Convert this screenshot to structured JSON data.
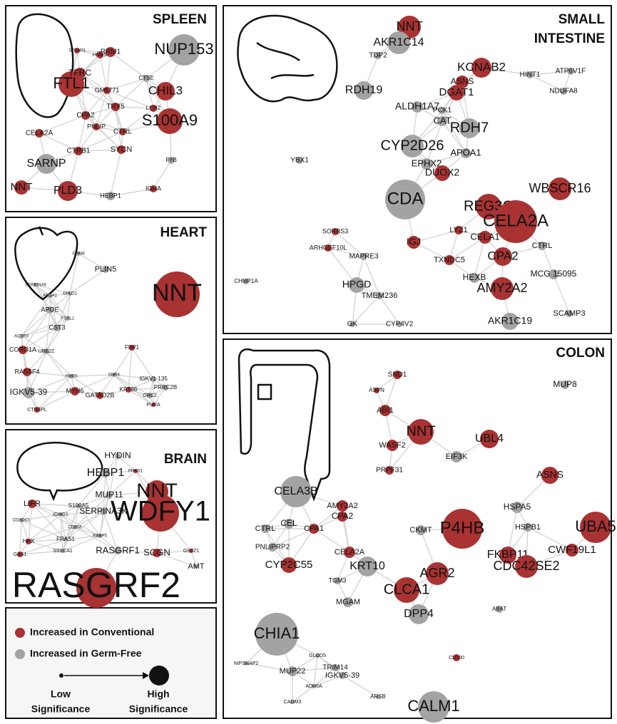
{
  "panels": [
    {
      "title": [
        "SPLEEN"
      ],
      "nodes": [
        {
          "label": "NUP153",
          "color": "#a3a3a3"
        },
        {
          "label": "FTL1",
          "color": "#a93232"
        },
        {
          "label": "CHIL3",
          "color": "#a93232"
        },
        {
          "label": "S100A9",
          "color": "#a93232"
        },
        {
          "label": "SARNP",
          "color": "#a3a3a3"
        },
        {
          "label": "NNT",
          "color": "#a93232"
        },
        {
          "label": "PLD3",
          "color": "#a93232"
        },
        {
          "label": "TFRC",
          "color": "#a93232"
        },
        {
          "label": "RRM1",
          "color": "#a93232"
        },
        {
          "label": "CTSE",
          "color": "#a3a3a3"
        },
        {
          "label": "HMBS",
          "color": "#a93232"
        },
        {
          "label": "STEAP3",
          "color": "#a93232"
        },
        {
          "label": "CPA2",
          "color": "#a93232"
        },
        {
          "label": "PNLIP",
          "color": "#a93232"
        },
        {
          "label": "CTRL",
          "color": "#a93232"
        },
        {
          "label": "CELA2A",
          "color": "#a93232"
        },
        {
          "label": "CTRB1",
          "color": "#a93232"
        },
        {
          "label": "SYCN",
          "color": "#a93232"
        },
        {
          "label": "TRY5",
          "color": "#a93232"
        },
        {
          "label": "LCN2",
          "color": "#a93232"
        },
        {
          "label": "HEBP1",
          "color": "#a3a3a3"
        },
        {
          "label": "IGHA",
          "color": "#a93232"
        },
        {
          "label": "FYB",
          "color": "#a3a3a3"
        },
        {
          "label": "GM5771",
          "color": "#a93232"
        }
      ]
    },
    {
      "title": [
        "HEART"
      ],
      "nodes": [
        {
          "label": "NNT",
          "color": "#a93232"
        },
        {
          "label": "PLIN5",
          "color": "#a3a3a3"
        },
        {
          "label": "GPAM",
          "color": "#a3a3a3"
        },
        {
          "label": "SERPINA6",
          "color": "#a3a3a3"
        },
        {
          "label": "APOA1",
          "color": "#a3a3a3"
        },
        {
          "label": "GPLD1",
          "color": "#a3a3a3"
        },
        {
          "label": "APOE",
          "color": "#a3a3a3"
        },
        {
          "label": "FSTL1",
          "color": "#a3a3a3"
        },
        {
          "label": "CST3",
          "color": "#a3a3a3"
        },
        {
          "label": "FBP1",
          "color": "#a93232"
        },
        {
          "label": "ACTR3",
          "color": "#a3a3a3"
        },
        {
          "label": "CORO1A",
          "color": "#a93232"
        },
        {
          "label": "UBE2Z",
          "color": "#a3a3a3"
        },
        {
          "label": "RASSF4",
          "color": "#a93232"
        },
        {
          "label": "IGKV5-39",
          "color": "#a3a3a3"
        },
        {
          "label": "MYH6",
          "color": "#a93232"
        },
        {
          "label": "GATAD2B",
          "color": "#a93232"
        },
        {
          "label": "KRT86",
          "color": "#a93232"
        },
        {
          "label": "IGKV1-135",
          "color": "#a3a3a3"
        },
        {
          "label": "PRRC2B",
          "color": "#a3a3a3"
        },
        {
          "label": "ORC2",
          "color": "#a3a3a3"
        },
        {
          "label": "CTDSPL",
          "color": "#a93232"
        },
        {
          "label": "PURA",
          "color": "#a93232"
        },
        {
          "label": "HMBS",
          "color": "#a3a3a3"
        },
        {
          "label": "SNRK",
          "color": "#a3a3a3"
        }
      ]
    },
    {
      "title": [
        "BRAIN"
      ],
      "nodes": [
        {
          "label": "WDFY1",
          "color": "#a93232"
        },
        {
          "label": "HYDIN",
          "color": "#a3a3a3"
        },
        {
          "label": "HEBP1",
          "color": "#a3a3a3"
        },
        {
          "label": "NNT",
          "color": "#a93232"
        },
        {
          "label": "MUP11",
          "color": "#a3a3a3"
        },
        {
          "label": "SERPINA3K",
          "color": "#a3a3a3"
        },
        {
          "label": "LIFR",
          "color": "#a93232"
        },
        {
          "label": "S100A5",
          "color": "#a3a3a3"
        },
        {
          "label": "IGHG1",
          "color": "#a3a3a3"
        },
        {
          "label": "CDADC1",
          "color": "#a3a3a3"
        },
        {
          "label": "CD59A",
          "color": "#a3a3a3"
        },
        {
          "label": "HPX",
          "color": "#a93232"
        },
        {
          "label": "FRAS1",
          "color": "#a3a3a3"
        },
        {
          "label": "RBBP5",
          "color": "#a3a3a3"
        },
        {
          "label": "GAS1",
          "color": "#a93232"
        },
        {
          "label": "SSSCA1",
          "color": "#a3a3a3"
        },
        {
          "label": "RASGRF1",
          "color": "#a3a3a3"
        },
        {
          "label": "SCGN",
          "color": "#a93232"
        },
        {
          "label": "GSTZ1",
          "color": "#a93232"
        },
        {
          "label": "AMT",
          "color": "#a3a3a3"
        },
        {
          "label": "PRKD1",
          "color": "#a93232"
        },
        {
          "label": "RASGRF2",
          "color": "#a93232"
        }
      ]
    },
    {
      "title": [
        "SMALL",
        "INTESTINE"
      ],
      "nodes": [
        {
          "label": "CDA",
          "color": "#a3a3a3"
        },
        {
          "label": "NNT",
          "color": "#a93232"
        },
        {
          "label": "AKR1C14",
          "color": "#a3a3a3"
        },
        {
          "label": "KCNAB2",
          "color": "#a93232"
        },
        {
          "label": "ASNS",
          "color": "#a93232"
        },
        {
          "label": "DGAT1",
          "color": "#a93232"
        },
        {
          "label": "RDH19",
          "color": "#a3a3a3"
        },
        {
          "label": "ALDH1A7",
          "color": "#a3a3a3"
        },
        {
          "label": "CAT",
          "color": "#a3a3a3"
        },
        {
          "label": "PCK1",
          "color": "#a3a3a3"
        },
        {
          "label": "RDH7",
          "color": "#a3a3a3"
        },
        {
          "label": "CYP2D26",
          "color": "#a3a3a3"
        },
        {
          "label": "APOA1",
          "color": "#a3a3a3"
        },
        {
          "label": "EPHX2",
          "color": "#a3a3a3"
        },
        {
          "label": "DUOX2",
          "color": "#a93232"
        },
        {
          "label": "REG3G",
          "color": "#a93232"
        },
        {
          "label": "CELA2A",
          "color": "#a93232"
        },
        {
          "label": "WBSCR16",
          "color": "#a93232"
        },
        {
          "label": "IGJ",
          "color": "#a93232"
        },
        {
          "label": "LYZ1",
          "color": "#a93232"
        },
        {
          "label": "CELA1",
          "color": "#a93232"
        },
        {
          "label": "TXNDC5",
          "color": "#a93232"
        },
        {
          "label": "CPA2",
          "color": "#a93232"
        },
        {
          "label": "CTRL",
          "color": "#a3a3a3"
        },
        {
          "label": "MCG 15095",
          "color": "#a3a3a3"
        },
        {
          "label": "AMY2A2",
          "color": "#a93232"
        },
        {
          "label": "HEXB",
          "color": "#a3a3a3"
        },
        {
          "label": "HPGD",
          "color": "#a3a3a3"
        },
        {
          "label": "TMEM236",
          "color": "#a3a3a3"
        },
        {
          "label": "AKR1C19",
          "color": "#a3a3a3"
        },
        {
          "label": "SCAMP3",
          "color": "#a3a3a3"
        },
        {
          "label": "YBX1",
          "color": "#a3a3a3"
        },
        {
          "label": "HINT1",
          "color": "#a3a3a3"
        },
        {
          "label": "ATP6V1F",
          "color": "#a3a3a3"
        },
        {
          "label": "NDUFA8",
          "color": "#a3a3a3"
        },
        {
          "label": "TDP2",
          "color": "#a3a3a3"
        },
        {
          "label": "GK",
          "color": "#a3a3a3"
        },
        {
          "label": "CYP4V2",
          "color": "#a3a3a3"
        },
        {
          "label": "CHMP1A",
          "color": "#a3a3a3"
        },
        {
          "label": "MAPRE3",
          "color": "#a3a3a3"
        },
        {
          "label": "SORBS3",
          "color": "#a93232"
        },
        {
          "label": "ARHGEF10L",
          "color": "#a93232"
        }
      ]
    },
    {
      "title": [
        "COLON"
      ],
      "nodes": [
        {
          "label": "P4HB",
          "color": "#a93232"
        },
        {
          "label": "MUP8",
          "color": "#a3a3a3"
        },
        {
          "label": "SND1",
          "color": "#a93232"
        },
        {
          "label": "ASPN",
          "color": "#a93232"
        },
        {
          "label": "ABI1",
          "color": "#a93232"
        },
        {
          "label": "NNT",
          "color": "#a93232"
        },
        {
          "label": "UBL4",
          "color": "#a93232"
        },
        {
          "label": "WASF2",
          "color": "#a93232"
        },
        {
          "label": "EIF3K",
          "color": "#a3a3a3"
        },
        {
          "label": "ASNS",
          "color": "#a93232"
        },
        {
          "label": "CELA3B",
          "color": "#a3a3a3"
        },
        {
          "label": "PRPF31",
          "color": "#a93232"
        },
        {
          "label": "AMY2A2",
          "color": "#a93232"
        },
        {
          "label": "UBA5",
          "color": "#a93232"
        },
        {
          "label": "HSPA5",
          "color": "#a3a3a3"
        },
        {
          "label": "HSPB1",
          "color": "#a3a3a3"
        },
        {
          "label": "CTRL",
          "color": "#a3a3a3"
        },
        {
          "label": "CEL",
          "color": "#a3a3a3"
        },
        {
          "label": "CPA1",
          "color": "#a93232"
        },
        {
          "label": "CPA2",
          "color": "#a93232"
        },
        {
          "label": "CELA2A",
          "color": "#a93232"
        },
        {
          "label": "PNLIPRP2",
          "color": "#a3a3a3"
        },
        {
          "label": "FKBP11",
          "color": "#a93232"
        },
        {
          "label": "CWF19L1",
          "color": "#a93232"
        },
        {
          "label": "CDC42SE2",
          "color": "#a93232"
        },
        {
          "label": "CYP2C55",
          "color": "#a93232"
        },
        {
          "label": "KRT10",
          "color": "#a3a3a3"
        },
        {
          "label": "AGR2",
          "color": "#a93232"
        },
        {
          "label": "CLCA1",
          "color": "#a93232"
        },
        {
          "label": "TGM3",
          "color": "#a3a3a3"
        },
        {
          "label": "MGAM",
          "color": "#a3a3a3"
        },
        {
          "label": "DPP4",
          "color": "#a3a3a3"
        },
        {
          "label": "CHIA1",
          "color": "#a3a3a3"
        },
        {
          "label": "CALM1",
          "color": "#a3a3a3"
        },
        {
          "label": "MUP22",
          "color": "#a3a3a3"
        },
        {
          "label": "IGKV5-39",
          "color": "#a3a3a3"
        },
        {
          "label": "TRIM14",
          "color": "#a3a3a3"
        },
        {
          "label": "GLOD5",
          "color": "#a3a3a3"
        },
        {
          "label": "ADH6A",
          "color": "#a3a3a3"
        },
        {
          "label": "CADM3",
          "color": "#a3a3a3"
        },
        {
          "label": "ARSB",
          "color": "#a3a3a3"
        },
        {
          "label": "NIPSNAP2",
          "color": "#a3a3a3"
        },
        {
          "label": "CD200",
          "color": "#a93232"
        },
        {
          "label": "CKMT",
          "color": "#a3a3a3"
        },
        {
          "label": "ABAT",
          "color": "#a3a3a3"
        }
      ]
    }
  ],
  "legend": {
    "items": [
      {
        "label": "Increased in Conventional",
        "color": "#a93232"
      },
      {
        "label": "Increased in Germ-Free",
        "color": "#a3a3a3"
      }
    ],
    "low": [
      "Low",
      "Significance"
    ],
    "high": [
      "High",
      "Significance"
    ]
  }
}
